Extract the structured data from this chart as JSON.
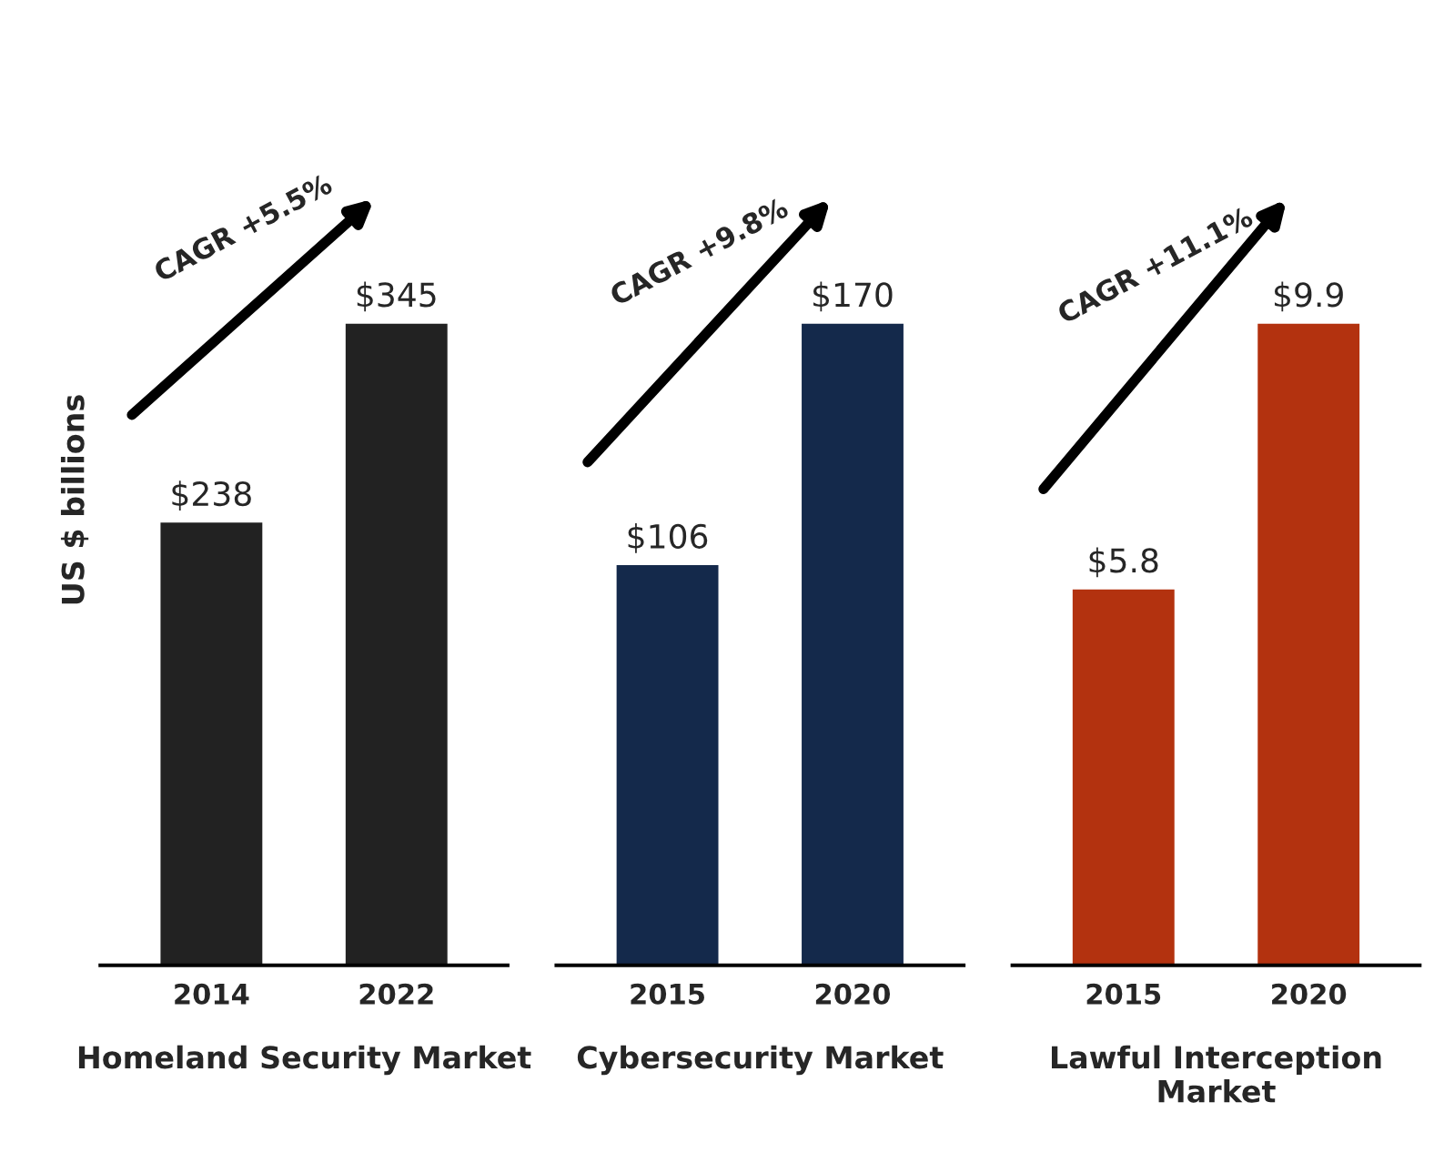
{
  "chart_data": [
    {
      "type": "bar",
      "categories": [
        "2014",
        "2022"
      ],
      "values": [
        238,
        345
      ],
      "colors": [
        "#222222",
        "#222222"
      ],
      "data_labels": true,
      "value_labels": [
        "$238",
        "$345"
      ],
      "xlabel": "Homeland Security Market",
      "ylabel": "US $ billions",
      "annotations": [
        "CAGR +5.5%"
      ],
      "tick_labels": "x",
      "grid": false,
      "legend": false
    },
    {
      "type": "bar",
      "categories": [
        "2015",
        "2020"
      ],
      "values": [
        106,
        170
      ],
      "colors": [
        "#14294b",
        "#14294b"
      ],
      "data_labels": true,
      "value_labels": [
        "$106",
        "$170"
      ],
      "xlabel": "Cybersecurity Market",
      "annotations": [
        "CAGR +9.8%"
      ],
      "tick_labels": "x",
      "grid": false,
      "legend": false
    },
    {
      "type": "bar",
      "categories": [
        "2015",
        "2020"
      ],
      "values": [
        5.8,
        9.9
      ],
      "colors": [
        "#b3320f",
        "#b3320f"
      ],
      "data_labels": true,
      "value_labels": [
        "$5.8",
        "$9.9"
      ],
      "xlabel": "Lawful Interception Market",
      "annotations": [
        "CAGR +11.1%"
      ],
      "tick_labels": "x",
      "grid": false,
      "legend": false
    }
  ]
}
